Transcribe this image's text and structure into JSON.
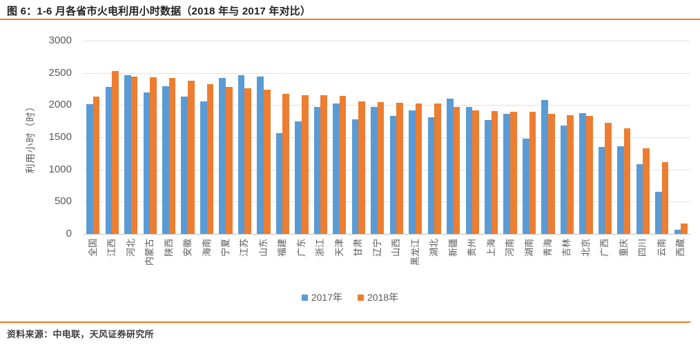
{
  "header": {
    "title": "图 6：1-6 月各省市火电利用小时数据（2018 年与 2017 年对比）"
  },
  "footer": {
    "source": "资料来源：中电联，天风证券研究所"
  },
  "colors": {
    "rule": "#E87D2A",
    "axis_text": "#595959",
    "gridline": "#E2E2E2",
    "bar_2017": "#5B9BD5",
    "bar_2018": "#ED7D31"
  },
  "chart_data": {
    "type": "bar",
    "title": "1-6 月各省市火电利用小时数据（2018 年与 2017 年对比）",
    "xlabel": "",
    "ylabel": "利用小时（时）",
    "ylim": [
      0,
      3000
    ],
    "ytick_step": 500,
    "grid": true,
    "legend_position": "bottom",
    "categories": [
      "全国",
      "江西",
      "河北",
      "内蒙古",
      "陕西",
      "安徽",
      "海南",
      "宁夏",
      "江苏",
      "山东",
      "福建",
      "广东",
      "浙江",
      "天津",
      "甘肃",
      "辽宁",
      "山西",
      "黑龙江",
      "湖北",
      "新疆",
      "贵州",
      "上海",
      "河南",
      "湖南",
      "青海",
      "吉林",
      "北京",
      "广西",
      "重庆",
      "四川",
      "云南",
      "西藏"
    ],
    "series": [
      {
        "name": "2017年",
        "color": "#5B9BD5",
        "values": [
          2010,
          2280,
          2465,
          2200,
          2290,
          2135,
          2060,
          2425,
          2465,
          2440,
          1565,
          1745,
          1970,
          2025,
          1780,
          1975,
          1830,
          1920,
          1815,
          2095,
          1970,
          1770,
          1860,
          1475,
          2080,
          1680,
          1870,
          1350,
          1365,
          1085,
          650,
          60
        ]
      },
      {
        "name": "2018年",
        "color": "#ED7D31",
        "values": [
          2130,
          2530,
          2445,
          2430,
          2420,
          2380,
          2325,
          2285,
          2260,
          2240,
          2180,
          2155,
          2150,
          2145,
          2055,
          2050,
          2040,
          2030,
          2025,
          1975,
          1915,
          1905,
          1895,
          1895,
          1865,
          1845,
          1830,
          1720,
          1635,
          1325,
          1115,
          165
        ]
      }
    ]
  }
}
